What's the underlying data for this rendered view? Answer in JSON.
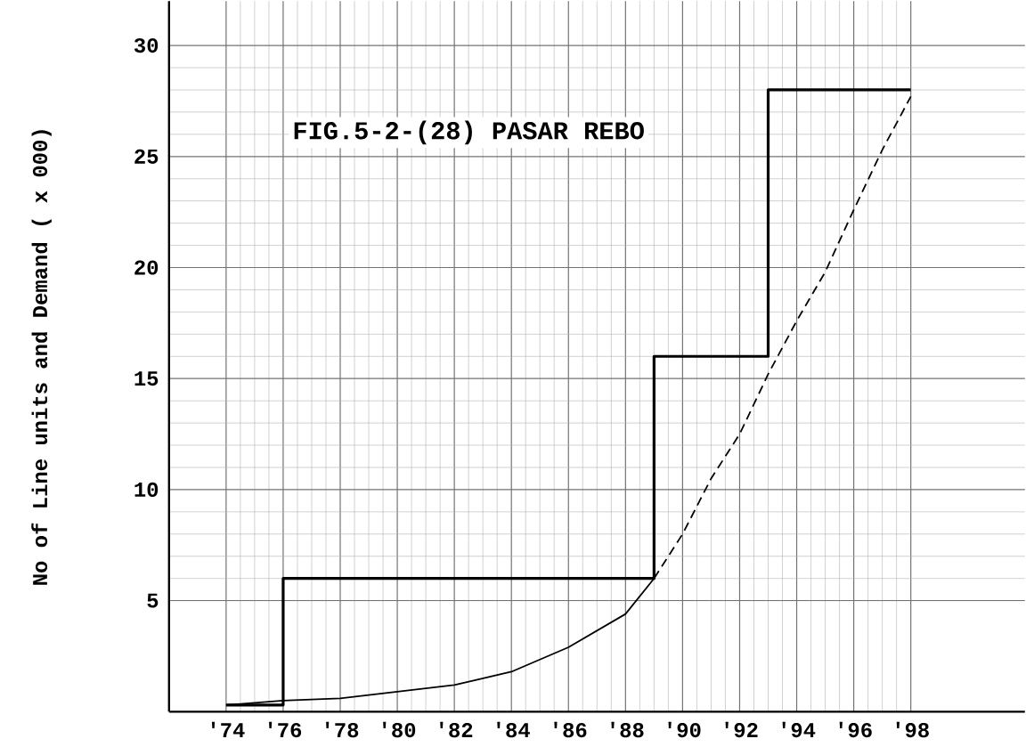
{
  "chart_data": {
    "type": "line",
    "title": "FIG.5-2-(28) PASAR REBO",
    "ylabel": "No of Line units and Demand ( x 000)",
    "xlim": [
      72,
      102
    ],
    "ylim": [
      0,
      32
    ],
    "xticks": [
      {
        "value": 74,
        "label": "'74"
      },
      {
        "value": 76,
        "label": "'76"
      },
      {
        "value": 78,
        "label": "'78"
      },
      {
        "value": 80,
        "label": "'80"
      },
      {
        "value": 82,
        "label": "'82"
      },
      {
        "value": 84,
        "label": "'84"
      },
      {
        "value": 86,
        "label": "'86"
      },
      {
        "value": 88,
        "label": "'88"
      },
      {
        "value": 90,
        "label": "'90"
      },
      {
        "value": 92,
        "label": "'92"
      },
      {
        "value": 94,
        "label": "'94"
      },
      {
        "value": 96,
        "label": "'96"
      },
      {
        "value": 98,
        "label": "'98"
      }
    ],
    "yticks": [
      5,
      10,
      15,
      20,
      25,
      30
    ],
    "grid": true,
    "marker": "none",
    "series": [
      {
        "type": "step",
        "color": "#000000",
        "line_style": "solid",
        "x": [
          74,
          76,
          89,
          93,
          98
        ],
        "values": [
          0.3,
          6,
          16,
          28,
          28
        ]
      },
      {
        "color": "#000000",
        "line_style": "solid",
        "x": [
          74,
          76,
          78,
          80,
          82,
          84,
          86,
          88,
          89
        ],
        "values": [
          0.3,
          0.5,
          0.6,
          0.9,
          1.2,
          1.8,
          2.9,
          4.4,
          6
        ]
      },
      {
        "color": "#000000",
        "line_style": "dashed",
        "x": [
          89,
          90,
          91,
          92,
          93,
          94,
          95,
          96,
          97,
          98
        ],
        "values": [
          6,
          8,
          10.5,
          12.5,
          15.2,
          17.6,
          19.8,
          22.6,
          25.3,
          27.7
        ]
      }
    ]
  }
}
